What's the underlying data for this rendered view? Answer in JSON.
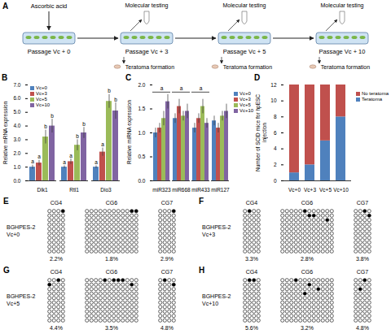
{
  "diagram": {
    "letter": "A",
    "treatment": "Ascorbic acid",
    "stages": [
      {
        "label": "Passage Vc + 0",
        "steps": []
      },
      {
        "label": "Passage Vc + 3",
        "steps": [
          "Molecular testing",
          "Teratoma formation"
        ]
      },
      {
        "label": "Passage Vc + 5",
        "steps": [
          "Molecular testing",
          "Teratoma formation"
        ]
      },
      {
        "label": "Passage Vc + 10",
        "steps": [
          "Molecular testing",
          "Teratoma formation"
        ]
      }
    ]
  },
  "chart_data": [
    {
      "letter": "B",
      "type": "bar",
      "y_label": "Relative mRNA expression",
      "categories": [
        "Dlk1",
        "Rtl1",
        "Dio3"
      ],
      "series": [
        {
          "name": "Vc+0",
          "color": "#4f81bd",
          "values": [
            1.0,
            1.0,
            1.0
          ],
          "errors": [
            0.15,
            0.1,
            0.1
          ],
          "letters": [
            "a",
            "a",
            "a"
          ]
        },
        {
          "name": "Vc+3",
          "color": "#c0504d",
          "values": [
            1.3,
            1.4,
            2.1
          ],
          "errors": [
            0.2,
            0.2,
            0.3
          ],
          "letters": [
            "a",
            "a",
            "a"
          ]
        },
        {
          "name": "Vc+5",
          "color": "#9bbb59",
          "values": [
            3.2,
            2.6,
            5.8
          ],
          "errors": [
            0.5,
            0.4,
            0.5
          ],
          "letters": [
            "b",
            "b",
            "b"
          ]
        },
        {
          "name": "Vc+10",
          "color": "#8064a2",
          "values": [
            4.0,
            3.5,
            5.1
          ],
          "errors": [
            0.5,
            0.4,
            0.6
          ],
          "letters": [
            "b",
            "b",
            "b"
          ]
        }
      ],
      "ylim": [
        0,
        7
      ],
      "yticks": [
        0,
        1,
        2,
        3,
        4,
        5,
        6,
        7
      ],
      "legend": "top-left"
    },
    {
      "letter": "C",
      "type": "bar",
      "y_label": "Relative miRNA expression",
      "categories": [
        "miR323",
        "miR668",
        "miR433",
        "miR127"
      ],
      "series": [
        {
          "name": "Vc+0",
          "color": "#4f81bd",
          "values": [
            1.0,
            1.3,
            1.1,
            1.25
          ],
          "errors": [
            0.1,
            0.1,
            0.1,
            0.1
          ]
        },
        {
          "name": "Vc+3",
          "color": "#c0504d",
          "values": [
            1.1,
            1.55,
            1.3,
            1.1
          ],
          "errors": [
            0.1,
            0.15,
            0.1,
            0.1
          ]
        },
        {
          "name": "Vc+5",
          "color": "#9bbb59",
          "values": [
            1.3,
            1.35,
            1.55,
            1.35
          ],
          "errors": [
            0.15,
            0.1,
            0.15,
            0.1
          ]
        },
        {
          "name": "Vc+10",
          "color": "#8064a2",
          "values": [
            1.65,
            1.45,
            1.2,
            1.45
          ],
          "errors": [
            0.15,
            0.15,
            0.1,
            0.15
          ]
        }
      ],
      "annotations": [
        {
          "category": "miR323",
          "y": 1.85,
          "text": "a"
        },
        {
          "category": "miR668",
          "y": 1.85,
          "text": "a"
        },
        {
          "category": "miR433",
          "y": 1.85,
          "text": "a"
        }
      ],
      "ylim": [
        0,
        2
      ],
      "yticks": [
        0,
        0.5,
        1,
        1.5,
        2
      ],
      "legend": "right"
    },
    {
      "letter": "D",
      "type": "bar",
      "stacked": true,
      "y_label": "Number of SCID mice for hpESC injection",
      "categories": [
        "Vc+0",
        "Vc+3",
        "Vc+5",
        "Vc+10"
      ],
      "series": [
        {
          "name": "Teratoma",
          "color": "#4f81bd",
          "values": [
            1,
            2,
            5,
            8
          ]
        },
        {
          "name": "No teratoma",
          "color": "#c0504d",
          "values": [
            11,
            10,
            7,
            4
          ]
        }
      ],
      "ylim": [
        0,
        12
      ],
      "yticks": [
        0,
        2,
        4,
        6,
        8,
        10,
        12
      ],
      "legend": "right"
    }
  ],
  "methylation": [
    {
      "letter": "E",
      "sample": "BGHPES-2",
      "passage": "Vc+0",
      "regions": [
        {
          "name": "CG4",
          "rows": 10,
          "cols": 4,
          "methylated": [
            [
              0,
              3
            ]
          ],
          "percent_label": "2.2%"
        },
        {
          "name": "CG6",
          "rows": 10,
          "cols": 12,
          "methylated": [
            [
              0,
              10
            ],
            [
              0,
              11
            ]
          ],
          "percent_label": "1.8%"
        },
        {
          "name": "CG7",
          "rows": 10,
          "cols": 4,
          "methylated": [
            [
              0,
              3
            ]
          ],
          "percent_label": "2.9%"
        }
      ]
    },
    {
      "letter": "F",
      "sample": "BGHPES-2",
      "passage": "Vc+3",
      "regions": [
        {
          "name": "CG4",
          "rows": 10,
          "cols": 4,
          "methylated": [
            [
              0,
              1
            ]
          ],
          "percent_label": "3.3%"
        },
        {
          "name": "CG6",
          "rows": 10,
          "cols": 12,
          "methylated": [
            [
              0,
              5
            ],
            [
              1,
              6
            ],
            [
              1,
              7
            ],
            [
              2,
              10
            ]
          ],
          "percent_label": "2.8%"
        },
        {
          "name": "CG7",
          "rows": 10,
          "cols": 4,
          "methylated": [
            [
              0,
              2
            ],
            [
              1,
              3
            ]
          ],
          "percent_label": "3.8%"
        }
      ]
    },
    {
      "letter": "G",
      "sample": "BGHPES-2",
      "passage": "Vc+5",
      "regions": [
        {
          "name": "CG4",
          "rows": 10,
          "cols": 4,
          "methylated": [
            [
              0,
              2
            ],
            [
              1,
              0
            ]
          ],
          "percent_label": "4.4%"
        },
        {
          "name": "CG6",
          "rows": 10,
          "cols": 12,
          "methylated": [
            [
              0,
              4
            ],
            [
              0,
              6
            ],
            [
              0,
              7
            ],
            [
              0,
              8
            ],
            [
              1,
              10
            ]
          ],
          "percent_label": "3.5%"
        },
        {
          "name": "CG7",
          "rows": 10,
          "cols": 4,
          "methylated": [
            [
              0,
              1
            ],
            [
              1,
              3
            ]
          ],
          "percent_label": "4.8%"
        }
      ]
    },
    {
      "letter": "H",
      "sample": "BGHPES-2",
      "passage": "Vc+10",
      "regions": [
        {
          "name": "CG4",
          "rows": 10,
          "cols": 4,
          "methylated": [
            [
              0,
              1
            ],
            [
              0,
              2
            ]
          ],
          "percent_label": "5.6%"
        },
        {
          "name": "CG6",
          "rows": 10,
          "cols": 12,
          "methylated": [
            [
              0,
              3
            ],
            [
              1,
              6
            ],
            [
              2,
              8
            ],
            [
              3,
              5
            ]
          ],
          "percent_label": "3.2%"
        },
        {
          "name": "CG7",
          "rows": 10,
          "cols": 4,
          "methylated": [
            [
              0,
              2
            ],
            [
              2,
              1
            ]
          ],
          "percent_label": "4.8%"
        }
      ]
    }
  ]
}
